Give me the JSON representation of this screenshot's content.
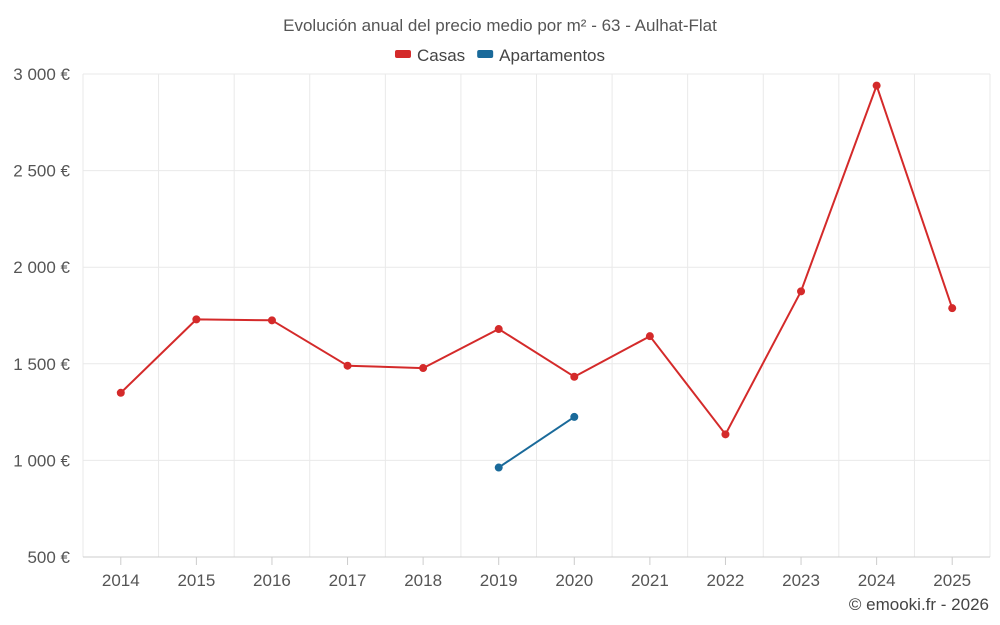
{
  "chart_data": {
    "type": "line",
    "title": "Evolución anual del precio medio por m² - 63 - Aulhat-Flat",
    "categories": [
      "2014",
      "2015",
      "2016",
      "2017",
      "2018",
      "2019",
      "2020",
      "2021",
      "2022",
      "2023",
      "2024",
      "2025"
    ],
    "ylim": [
      500,
      3000
    ],
    "yticks": [
      500,
      1000,
      1500,
      2000,
      2500,
      3000
    ],
    "ytick_labels": [
      "500 €",
      "1 000 €",
      "1 500 €",
      "2 000 €",
      "2 500 €",
      "3 000 €"
    ],
    "grid": true,
    "legend_position": "top-center",
    "series": [
      {
        "name": "Casas",
        "color": "#d42a2a",
        "values": [
          1350,
          1730,
          1725,
          1490,
          1478,
          1680,
          1433,
          1643,
          1135,
          1875,
          2940,
          1788
        ]
      },
      {
        "name": "Apartamentos",
        "color": "#1a6a9a",
        "values": [
          null,
          null,
          null,
          null,
          null,
          963,
          1225,
          null,
          null,
          null,
          null,
          null
        ]
      }
    ]
  },
  "credit": "© emooki.fr - 2026"
}
